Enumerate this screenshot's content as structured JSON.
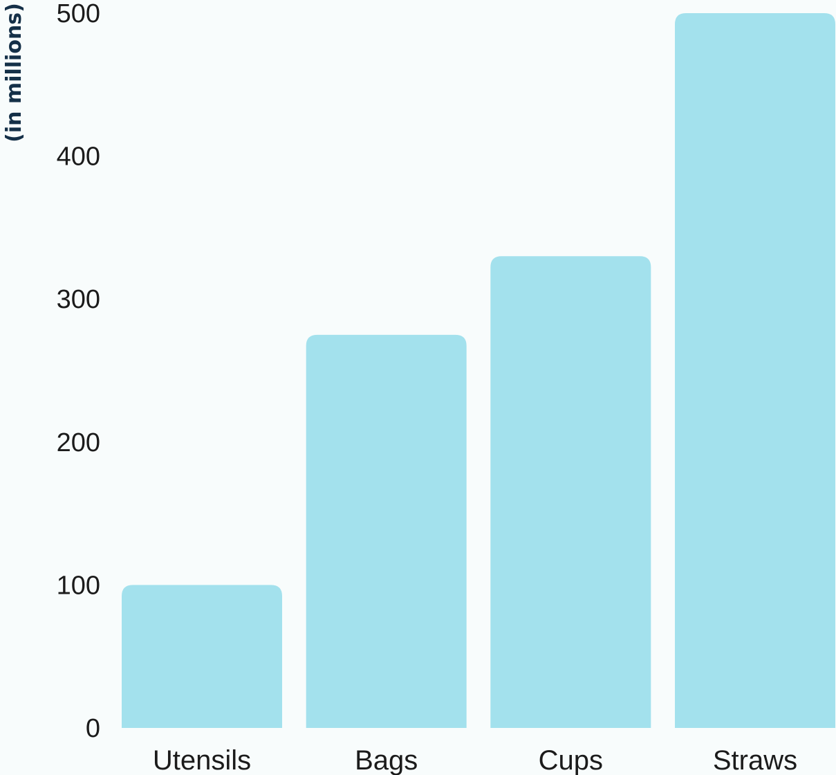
{
  "chart_data": {
    "type": "bar",
    "title": "",
    "xlabel": "",
    "ylabel": "(in millions)",
    "categories": [
      "Utensils",
      "Bags",
      "Cups",
      "Straws"
    ],
    "values": [
      100,
      275,
      330,
      500
    ],
    "ylim": [
      0,
      500
    ],
    "yticks": [
      0,
      100,
      200,
      300,
      400,
      500
    ],
    "grid": false,
    "legend": "none",
    "bar_color": "#a3e1ed",
    "text_color": "#1b1b1b",
    "ylabel_color": "#153048",
    "background": "#f8fcfc"
  }
}
